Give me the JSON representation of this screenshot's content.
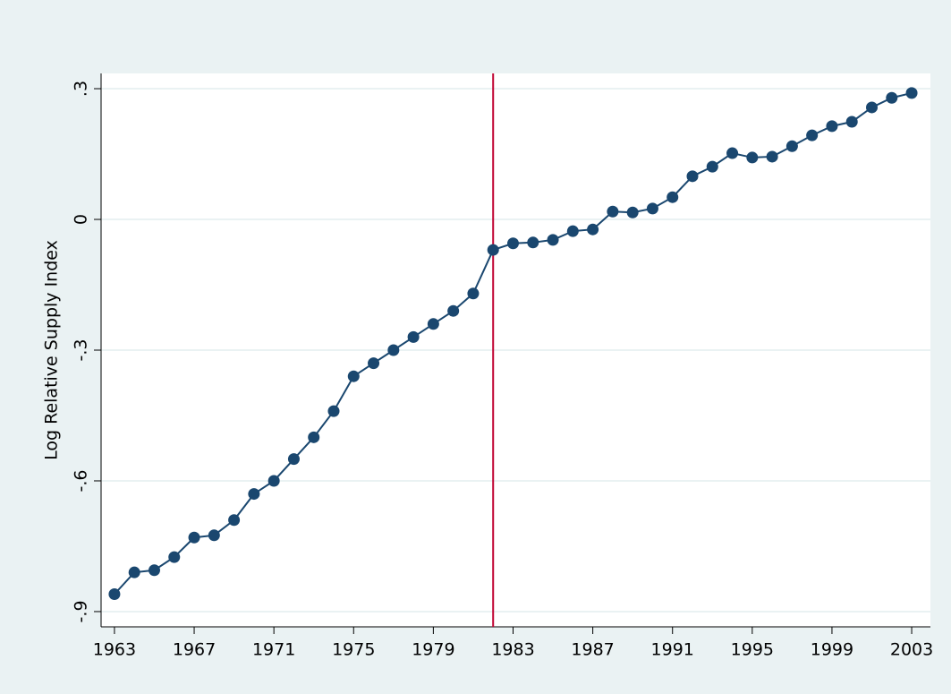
{
  "chart_data": {
    "type": "line",
    "y_label": "Log Relative Supply Index",
    "x": [
      1963,
      1964,
      1965,
      1966,
      1967,
      1968,
      1969,
      1970,
      1971,
      1972,
      1973,
      1974,
      1975,
      1976,
      1977,
      1978,
      1979,
      1980,
      1981,
      1982,
      1983,
      1984,
      1985,
      1986,
      1987,
      1988,
      1989,
      1990,
      1991,
      1992,
      1993,
      1994,
      1995,
      1996,
      1997,
      1998,
      1999,
      2000,
      2001,
      2002,
      2003
    ],
    "y": [
      -0.86,
      -0.81,
      -0.805,
      -0.775,
      -0.73,
      -0.725,
      -0.69,
      -0.63,
      -0.6,
      -0.55,
      -0.5,
      -0.44,
      -0.36,
      -0.33,
      -0.3,
      -0.27,
      -0.24,
      -0.21,
      -0.17,
      -0.07,
      -0.055,
      -0.053,
      -0.047,
      -0.027,
      -0.023,
      0.018,
      0.016,
      0.025,
      0.051,
      0.099,
      0.121,
      0.152,
      0.142,
      0.144,
      0.168,
      0.193,
      0.214,
      0.224,
      0.257,
      0.279,
      0.29
    ],
    "color": "#1a476f",
    "xlim": [
      1962.33,
      2003.94
    ],
    "xticks": [
      1963,
      1967,
      1971,
      1975,
      1979,
      1983,
      1987,
      1991,
      1995,
      1999,
      2003
    ],
    "ylim": [
      -0.935,
      0.335
    ],
    "yticks": [
      {
        "value": -0.9,
        "label": "-.9"
      },
      {
        "value": -0.6,
        "label": "-.6"
      },
      {
        "value": -0.3,
        "label": "-.3"
      },
      0,
      {
        "value": 0.3,
        "label": ".3"
      }
    ],
    "grid": true,
    "vline": 1982,
    "vline_color": "#c10534"
  }
}
